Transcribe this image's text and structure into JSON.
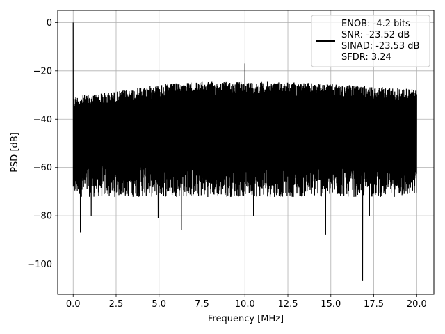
{
  "chart_data": {
    "type": "line",
    "title": "",
    "xlabel": "Frequency [MHz]",
    "ylabel": "PSD [dB]",
    "xlim": [
      -0.9,
      21.0
    ],
    "ylim": [
      -112.5,
      5.0
    ],
    "xticks": [
      0.0,
      2.5,
      5.0,
      7.5,
      10.0,
      12.5,
      15.0,
      17.5,
      20.0
    ],
    "xtick_labels": [
      "0.0",
      "2.5",
      "5.0",
      "7.5",
      "10.0",
      "12.5",
      "15.0",
      "17.5",
      "20.0"
    ],
    "yticks": [
      0,
      -20,
      -40,
      -60,
      -80,
      -100
    ],
    "ytick_labels": [
      "0",
      "−20",
      "−40",
      "−60",
      "−80",
      "−100"
    ],
    "grid": true,
    "legend_placement": "upper-right",
    "line_color": "#000000",
    "legend": {
      "lines": [
        "ENOB: -4.2 bits",
        "SNR: -23.52 dB",
        "SINAD: -23.53 dB",
        "SFDR: 3.24"
      ]
    },
    "series": [
      {
        "values_description": "dense noisy PSD from 0 to 20 MHz",
        "noise_ceiling": [
          {
            "x": 0.0,
            "y": -29
          },
          {
            "x": 2.5,
            "y": -27
          },
          {
            "x": 5.0,
            "y": -24
          },
          {
            "x": 7.5,
            "y": -23
          },
          {
            "x": 10.0,
            "y": -23
          },
          {
            "x": 12.5,
            "y": -23
          },
          {
            "x": 15.0,
            "y": -24
          },
          {
            "x": 17.5,
            "y": -25
          },
          {
            "x": 20.0,
            "y": -26
          }
        ],
        "noise_floor_typical": -68,
        "spikes": [
          {
            "x": 0.0,
            "y": 0
          },
          {
            "x": 10.0,
            "y": -17
          }
        ],
        "deep_dips": [
          {
            "x": 0.42,
            "y": -87
          },
          {
            "x": 6.3,
            "y": -86
          },
          {
            "x": 14.7,
            "y": -88
          },
          {
            "x": 16.85,
            "y": -107
          },
          {
            "x": 17.25,
            "y": -80
          },
          {
            "x": 4.95,
            "y": -81
          },
          {
            "x": 10.5,
            "y": -80
          },
          {
            "x": 1.05,
            "y": -80
          }
        ]
      }
    ]
  }
}
